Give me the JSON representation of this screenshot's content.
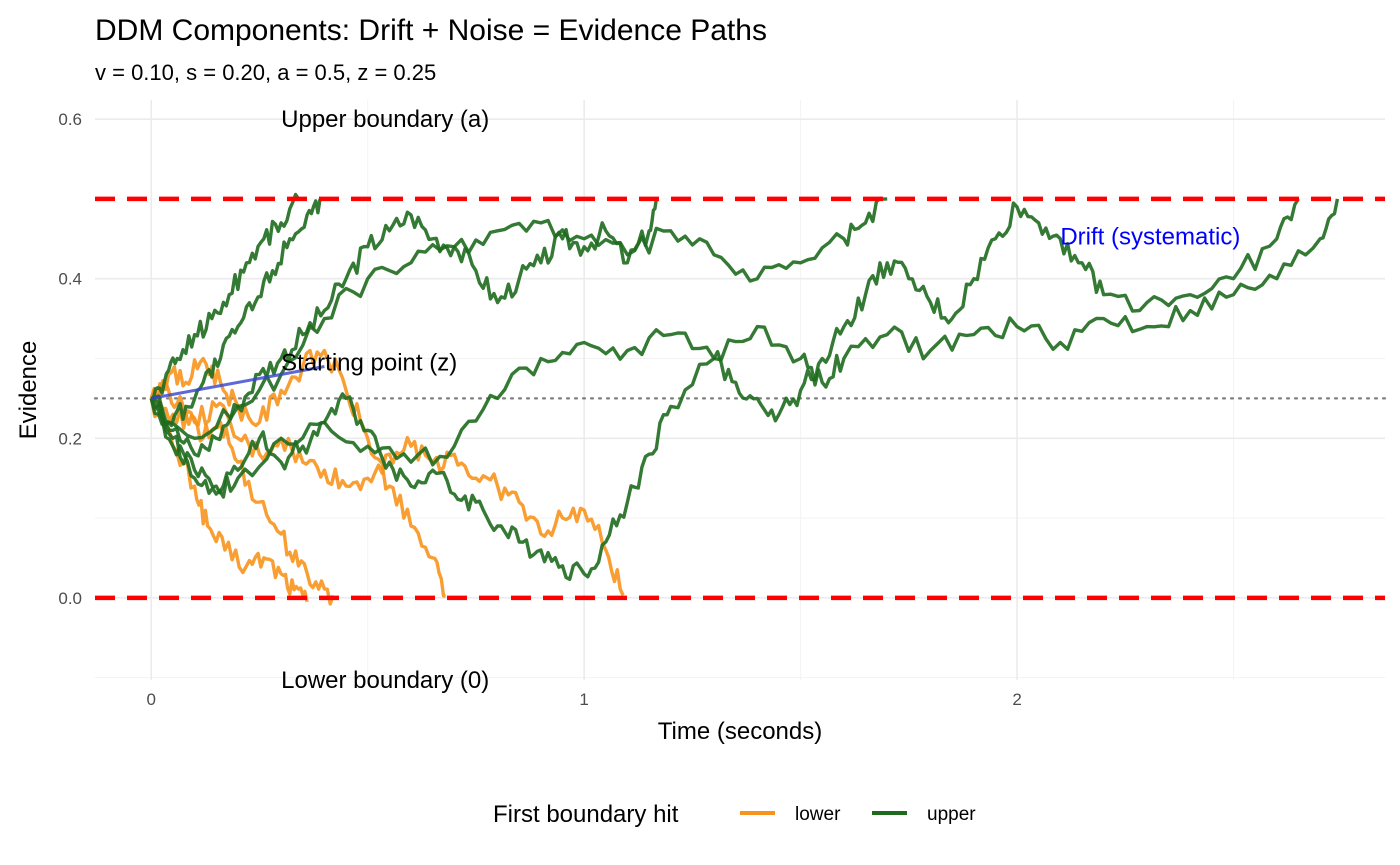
{
  "chart_data": {
    "type": "line",
    "title": "DDM Components: Drift + Noise = Evidence Paths",
    "subtitle": "v = 0.10, s = 0.20, a = 0.5, z = 0.25",
    "xlabel": "Time (seconds)",
    "ylabel": "Evidence",
    "xlim": [
      -0.13,
      2.85
    ],
    "ylim": [
      -0.103,
      0.624
    ],
    "x_ticks": [
      0,
      1,
      2
    ],
    "x_tick_labels": [
      "0",
      "1",
      "2"
    ],
    "x_minor_ticks": [
      0.5,
      1.5,
      2.5
    ],
    "y_ticks": [
      0.0,
      0.2,
      0.4,
      0.6
    ],
    "y_tick_labels": [
      "0.0",
      "0.2",
      "0.4",
      "0.6"
    ],
    "y_minor_ticks": [
      -0.1,
      0.1,
      0.3,
      0.5
    ],
    "grid": true,
    "parameters": {
      "v": 0.1,
      "s": 0.2,
      "a": 0.5,
      "z": 0.25
    },
    "boundaries": [
      {
        "name": "upper",
        "value": 0.5,
        "color": "#ff0000",
        "style": "dashed"
      },
      {
        "name": "lower",
        "value": 0.0,
        "color": "#ff0000",
        "style": "dashed"
      }
    ],
    "starting_point_line": {
      "value": 0.25,
      "color": "#7f7f7f",
      "style": "dotted"
    },
    "drift_line": {
      "x": [
        0,
        0.4
      ],
      "y": [
        0.25,
        0.29
      ],
      "color": "#3344cc"
    },
    "annotations": [
      {
        "text": "Upper boundary (a)",
        "x": 0.3,
        "y": 0.6,
        "color": "#000000"
      },
      {
        "text": "Starting point (z)",
        "x": 0.3,
        "y": 0.295,
        "color": "#000000"
      },
      {
        "text": "Lower boundary (0)",
        "x": 0.3,
        "y": -0.103,
        "color": "#000000"
      },
      {
        "text": "Drift (systematic)",
        "x": 2.1,
        "y": 0.453,
        "color": "#0000ff"
      }
    ],
    "legend": {
      "title": "First boundary hit",
      "placement": "bottom",
      "entries": [
        {
          "name": "lower",
          "color": "#f7941d"
        },
        {
          "name": "upper",
          "color": "#1e6b1e"
        }
      ]
    },
    "series": [
      {
        "group": "lower",
        "color": "#f7941d",
        "x": [
          0,
          0.05,
          0.1,
          0.13,
          0.17,
          0.22,
          0.26,
          0.3,
          0.33,
          0.36
        ],
        "y": [
          0.25,
          0.19,
          0.14,
          0.09,
          0.06,
          0.04,
          0.05,
          0.03,
          0.01,
          -0.005
        ]
      },
      {
        "group": "lower",
        "color": "#f7941d",
        "x": [
          0,
          0.04,
          0.08,
          0.12,
          0.16,
          0.2,
          0.25,
          0.3,
          0.34,
          0.38,
          0.42
        ],
        "y": [
          0.25,
          0.26,
          0.23,
          0.2,
          0.22,
          0.17,
          0.12,
          0.08,
          0.04,
          0.02,
          0.003
        ]
      },
      {
        "group": "lower",
        "color": "#f7941d",
        "x": [
          0,
          0.04,
          0.08,
          0.12,
          0.16,
          0.2,
          0.25,
          0.3,
          0.35,
          0.4,
          0.45,
          0.5,
          0.55,
          0.6,
          0.65,
          0.68
        ],
        "y": [
          0.25,
          0.28,
          0.27,
          0.3,
          0.27,
          0.24,
          0.22,
          0.26,
          0.29,
          0.31,
          0.26,
          0.2,
          0.14,
          0.09,
          0.05,
          0.002
        ]
      },
      {
        "group": "lower",
        "color": "#f7941d",
        "x": [
          0,
          0.05,
          0.1,
          0.15,
          0.2,
          0.25,
          0.3,
          0.35,
          0.4,
          0.45,
          0.5,
          0.55,
          0.6,
          0.65,
          0.7,
          0.75,
          0.8,
          0.85,
          0.9,
          0.95,
          1.0,
          1.05,
          1.09
        ],
        "y": [
          0.25,
          0.23,
          0.22,
          0.24,
          0.2,
          0.18,
          0.2,
          0.17,
          0.16,
          0.14,
          0.15,
          0.18,
          0.19,
          0.17,
          0.18,
          0.15,
          0.14,
          0.12,
          0.08,
          0.1,
          0.11,
          0.06,
          0.003
        ]
      },
      {
        "group": "upper",
        "color": "#1e6b1e",
        "x": [
          0,
          0.03,
          0.06,
          0.1,
          0.14,
          0.18,
          0.22,
          0.26,
          0.3,
          0.34
        ],
        "y": [
          0.25,
          0.27,
          0.3,
          0.33,
          0.35,
          0.38,
          0.42,
          0.45,
          0.47,
          0.5
        ]
      },
      {
        "group": "upper",
        "color": "#1e6b1e",
        "x": [
          0,
          0.04,
          0.08,
          0.12,
          0.16,
          0.2,
          0.24,
          0.28,
          0.32,
          0.36,
          0.39
        ],
        "y": [
          0.25,
          0.22,
          0.24,
          0.27,
          0.3,
          0.34,
          0.37,
          0.41,
          0.45,
          0.48,
          0.5
        ]
      },
      {
        "group": "upper",
        "color": "#1e6b1e",
        "x": [
          0,
          0.05,
          0.1,
          0.15,
          0.2,
          0.25,
          0.3,
          0.35,
          0.4,
          0.45,
          0.5,
          0.55,
          0.6,
          0.65,
          0.7,
          0.75,
          0.8,
          0.85,
          0.9,
          0.95,
          1.0,
          1.05,
          1.1,
          1.15,
          1.17
        ],
        "y": [
          0.25,
          0.21,
          0.18,
          0.2,
          0.24,
          0.28,
          0.3,
          0.33,
          0.36,
          0.4,
          0.44,
          0.46,
          0.48,
          0.45,
          0.44,
          0.41,
          0.37,
          0.4,
          0.42,
          0.45,
          0.44,
          0.46,
          0.42,
          0.46,
          0.5
        ]
      },
      {
        "group": "upper",
        "color": "#1e6b1e",
        "x": [
          0,
          0.1,
          0.2,
          0.3,
          0.4,
          0.5,
          0.6,
          0.7,
          0.8,
          0.9,
          1.0,
          1.1,
          1.2,
          1.3,
          1.4,
          1.5,
          1.6,
          1.65,
          1.7
        ],
        "y": [
          0.25,
          0.2,
          0.24,
          0.28,
          0.35,
          0.4,
          0.42,
          0.44,
          0.46,
          0.47,
          0.45,
          0.43,
          0.46,
          0.43,
          0.4,
          0.42,
          0.45,
          0.47,
          0.5
        ]
      },
      {
        "group": "upper",
        "color": "#1e6b1e",
        "x": [
          0,
          0.05,
          0.1,
          0.15,
          0.2,
          0.25,
          0.3,
          0.35,
          0.4,
          0.45,
          0.5,
          0.55,
          0.6,
          0.65,
          0.7,
          0.75,
          0.8,
          0.85,
          0.9,
          0.95,
          1.0,
          1.05,
          1.1,
          1.15,
          1.2,
          1.3,
          1.4,
          1.5,
          1.55,
          1.6,
          1.7,
          1.8,
          1.9,
          2.0,
          2.1,
          2.2,
          2.3,
          2.4,
          2.5,
          2.6,
          2.7,
          2.74
        ],
        "y": [
          0.25,
          0.2,
          0.16,
          0.14,
          0.16,
          0.2,
          0.17,
          0.19,
          0.22,
          0.25,
          0.21,
          0.17,
          0.14,
          0.16,
          0.13,
          0.12,
          0.09,
          0.07,
          0.06,
          0.04,
          0.03,
          0.07,
          0.12,
          0.18,
          0.24,
          0.3,
          0.34,
          0.3,
          0.27,
          0.3,
          0.33,
          0.31,
          0.33,
          0.34,
          0.32,
          0.35,
          0.34,
          0.36,
          0.38,
          0.4,
          0.45,
          0.5
        ]
      },
      {
        "group": "upper",
        "color": "#1e6b1e",
        "x": [
          0,
          0.05,
          0.1,
          0.15,
          0.2,
          0.3,
          0.4,
          0.5,
          0.6,
          0.7,
          0.8,
          0.9,
          1.0,
          1.1,
          1.2,
          1.3,
          1.35,
          1.4,
          1.45,
          1.5,
          1.55,
          1.6,
          1.65,
          1.7,
          1.75,
          1.8,
          1.85,
          1.9,
          1.95,
          2.0,
          2.05,
          2.1,
          2.15,
          2.2,
          2.3,
          2.4,
          2.5,
          2.6,
          2.65
        ],
        "y": [
          0.25,
          0.19,
          0.15,
          0.13,
          0.15,
          0.2,
          0.22,
          0.19,
          0.17,
          0.19,
          0.25,
          0.3,
          0.32,
          0.31,
          0.33,
          0.3,
          0.27,
          0.25,
          0.23,
          0.26,
          0.3,
          0.34,
          0.38,
          0.42,
          0.4,
          0.37,
          0.35,
          0.4,
          0.45,
          0.49,
          0.47,
          0.45,
          0.42,
          0.38,
          0.37,
          0.38,
          0.4,
          0.45,
          0.5
        ]
      }
    ]
  }
}
